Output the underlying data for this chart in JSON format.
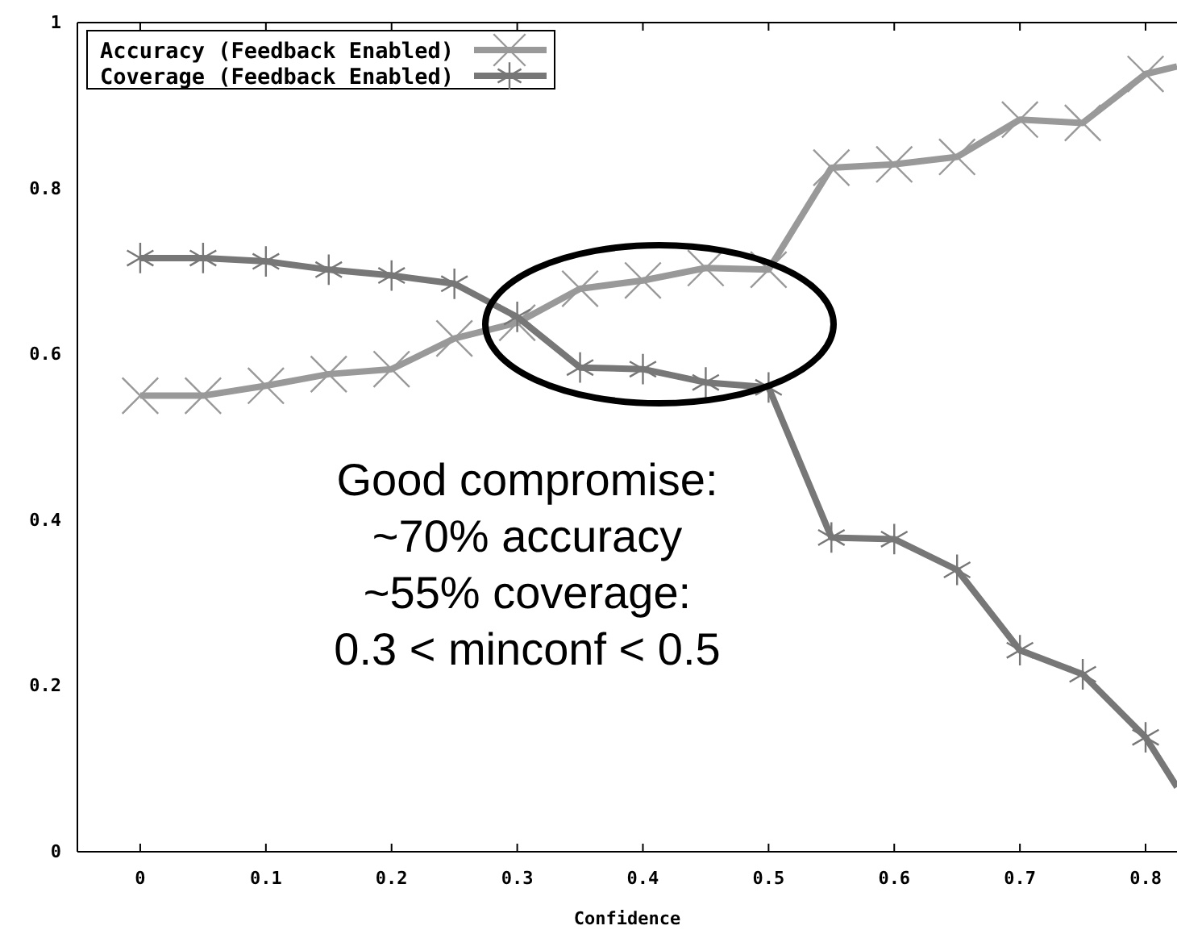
{
  "chart_data": {
    "type": "line",
    "xlabel": "Confidence",
    "x": [
      0,
      0.05,
      0.1,
      0.15,
      0.2,
      0.25,
      0.3,
      0.35,
      0.4,
      0.45,
      0.5,
      0.55,
      0.6,
      0.65,
      0.7,
      0.75,
      0.8,
      0.825
    ],
    "series": [
      {
        "name": "Accuracy (Feedback Enabled)",
        "color": "#999999",
        "marker": "cross",
        "values": [
          0.55,
          0.55,
          0.562,
          0.576,
          0.582,
          0.619,
          0.638,
          0.679,
          0.689,
          0.704,
          0.702,
          0.825,
          0.829,
          0.838,
          0.883,
          0.879,
          0.938,
          0.947
        ]
      },
      {
        "name": "Coverage (Feedback Enabled)",
        "color": "#777777",
        "marker": "cross",
        "values": [
          0.716,
          0.716,
          0.712,
          0.702,
          0.695,
          0.685,
          0.645,
          0.584,
          0.582,
          0.566,
          0.56,
          0.379,
          0.377,
          0.34,
          0.243,
          0.214,
          0.138,
          0.078
        ]
      }
    ],
    "xlim": [
      -0.05,
      0.825
    ],
    "ylim": [
      0,
      1
    ],
    "xticks": [
      {
        "value": 0,
        "label": "0"
      },
      0.1,
      0.2,
      0.3,
      0.4,
      0.5,
      0.6,
      0.7,
      0.8
    ],
    "yticks": [
      0,
      0.2,
      0.4,
      0.6,
      0.8,
      1
    ],
    "legend": "top left",
    "line_style": "solid",
    "annotations": [
      "Good compromise:",
      "~70% accuracy",
      "~55% coverage:",
      "0.3 < minconf < 0.5"
    ]
  }
}
